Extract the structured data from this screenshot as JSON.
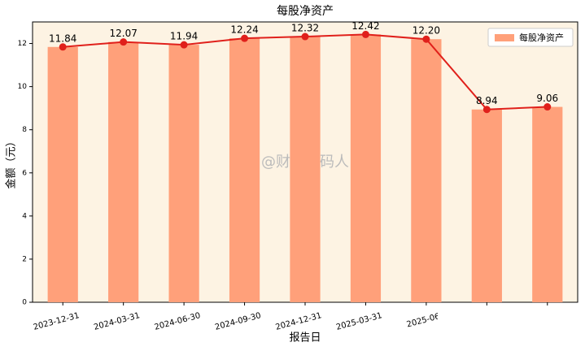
{
  "chart_data": {
    "type": "bar",
    "title": "每股净资产",
    "x_label": "报告日",
    "y_label": "金额（元）",
    "annotations": [
      "@财报解码人"
    ],
    "categories": [
      "2023-12-31",
      "2024-03-31",
      "2024-06-30",
      "2024-09-30",
      "2024-12-31",
      "2025-03-31",
      "2025-06-",
      null,
      null
    ],
    "series": [
      {
        "name": "每股净资产",
        "color": "#ffa07a",
        "line_color": "#e0201b",
        "values": [
          11.84,
          12.07,
          11.94,
          12.24,
          12.32,
          12.42,
          12.2,
          8.94,
          9.06
        ],
        "value_labels": [
          "11.84",
          "12.07",
          "11.94",
          "12.24",
          "12.32",
          "12.42",
          "12.20",
          "8.94",
          "9.06"
        ]
      }
    ],
    "ylim": [
      0,
      13
    ],
    "yticks": [
      0,
      2,
      4,
      6,
      8,
      10,
      12
    ],
    "grid": false,
    "legend": "upper right",
    "background": "#fdf3e3"
  }
}
